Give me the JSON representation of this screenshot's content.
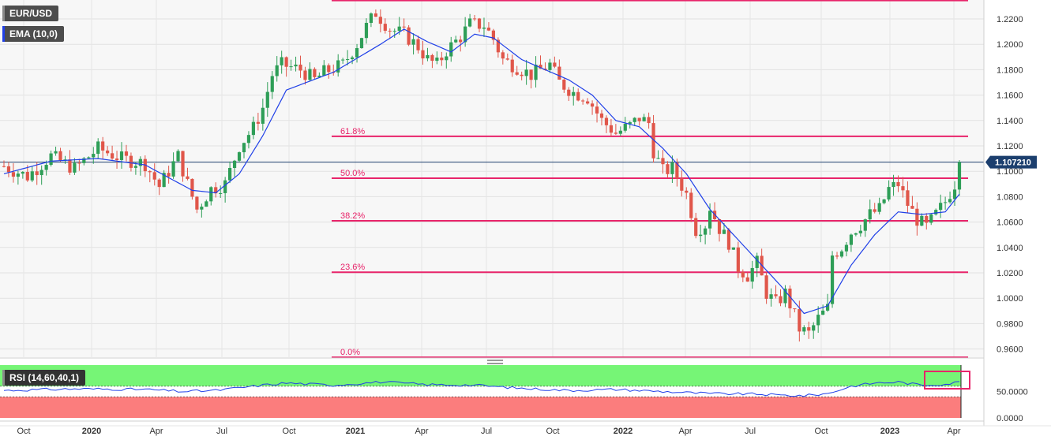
{
  "instrument": "EUR/USD",
  "indicator_label": "EMA (10,0)",
  "rsi_label": "RSI (14,60,40,1)",
  "colors": {
    "up": "#2e9e57",
    "down": "#e0564a",
    "ema": "#2040e8",
    "fib": "#e8246a",
    "rsi_line": "#2040e8",
    "rsi_upper": "#76f576",
    "rsi_lower": "#fb7d7d",
    "annotation": "#e8246a",
    "current_label_bg": "#1c3f6e",
    "legend_bg": "#4d4d4d"
  },
  "current_price": "1.107210",
  "chart_data": {
    "type": "candlestick",
    "timeframe": "weekly",
    "ylim": [
      0.955,
      1.235
    ],
    "y_ticks": [
      "1.2200",
      "1.2000",
      "1.1800",
      "1.1600",
      "1.1400",
      "1.1200",
      "1.1000",
      "1.0800",
      "1.0600",
      "1.0400",
      "1.0200",
      "1.0000",
      "0.9800",
      "0.9600"
    ],
    "x_ticks": [
      "Oct",
      "2020",
      "Apr",
      "Jul",
      "Oct",
      "2021",
      "Apr",
      "Jul",
      "Oct",
      "2022",
      "Apr",
      "Jul",
      "Oct",
      "2023",
      "Apr"
    ],
    "fib_levels": [
      {
        "label": "0.0%",
        "value": 0.9535
      },
      {
        "label": "23.6%",
        "value": 1.0205
      },
      {
        "label": "38.2%",
        "value": 1.061
      },
      {
        "label": "50.0%",
        "value": 1.0945
      },
      {
        "label": "61.8%",
        "value": 1.1275
      },
      {
        "label": "",
        "value": 1.2345
      }
    ],
    "current_price_line": 1.1072,
    "anchors": [
      [
        0,
        1.104
      ],
      [
        5,
        1.096
      ],
      [
        10,
        1.112
      ],
      [
        15,
        1.102
      ],
      [
        20,
        1.118
      ],
      [
        25,
        1.11
      ],
      [
        30,
        1.106
      ],
      [
        33,
        1.088
      ],
      [
        37,
        1.112
      ],
      [
        39,
        1.09
      ],
      [
        41,
        1.07
      ],
      [
        44,
        1.086
      ],
      [
        47,
        1.09
      ],
      [
        50,
        1.12
      ],
      [
        53,
        1.134
      ],
      [
        55,
        1.15
      ],
      [
        57,
        1.176
      ],
      [
        59,
        1.184
      ],
      [
        63,
        1.18
      ],
      [
        66,
        1.172
      ],
      [
        68,
        1.178
      ],
      [
        72,
        1.184
      ],
      [
        75,
        1.2
      ],
      [
        77,
        1.214
      ],
      [
        79,
        1.225
      ],
      [
        82,
        1.212
      ],
      [
        85,
        1.208
      ],
      [
        88,
        1.198
      ],
      [
        90,
        1.188
      ],
      [
        92,
        1.184
      ],
      [
        94,
        1.195
      ],
      [
        97,
        1.206
      ],
      [
        99,
        1.216
      ],
      [
        102,
        1.215
      ],
      [
        104,
        1.204
      ],
      [
        106,
        1.188
      ],
      [
        109,
        1.182
      ],
      [
        112,
        1.176
      ],
      [
        114,
        1.18
      ],
      [
        116,
        1.184
      ],
      [
        118,
        1.17
      ],
      [
        121,
        1.162
      ],
      [
        124,
        1.158
      ],
      [
        127,
        1.14
      ],
      [
        130,
        1.13
      ],
      [
        133,
        1.136
      ],
      [
        135,
        1.142
      ],
      [
        137,
        1.138
      ],
      [
        138,
        1.116
      ],
      [
        140,
        1.1
      ],
      [
        142,
        1.102
      ],
      [
        145,
        1.082
      ],
      [
        147,
        1.054
      ],
      [
        149,
        1.058
      ],
      [
        150,
        1.072
      ],
      [
        152,
        1.055
      ],
      [
        154,
        1.044
      ],
      [
        156,
        1.024
      ],
      [
        158,
        1.018
      ],
      [
        160,
        1.028
      ],
      [
        162,
        1.004
      ],
      [
        164,
        0.996
      ],
      [
        166,
        1.004
      ],
      [
        168,
        0.986
      ],
      [
        169,
        0.976
      ],
      [
        171,
        0.972
      ],
      [
        173,
        0.984
      ],
      [
        175,
        0.992
      ],
      [
        176,
        1.034
      ],
      [
        178,
        1.04
      ],
      [
        180,
        1.052
      ],
      [
        182,
        1.058
      ],
      [
        184,
        1.066
      ],
      [
        186,
        1.07
      ],
      [
        188,
        1.086
      ],
      [
        190,
        1.09
      ],
      [
        192,
        1.074
      ],
      [
        194,
        1.062
      ],
      [
        196,
        1.056
      ],
      [
        198,
        1.066
      ],
      [
        200,
        1.076
      ],
      [
        202,
        1.09
      ],
      [
        203,
        1.1072
      ]
    ],
    "ema_anchors": [
      [
        0,
        1.098
      ],
      [
        10,
        1.108
      ],
      [
        20,
        1.11
      ],
      [
        30,
        1.105
      ],
      [
        40,
        1.085
      ],
      [
        45,
        1.083
      ],
      [
        50,
        1.098
      ],
      [
        55,
        1.128
      ],
      [
        60,
        1.164
      ],
      [
        70,
        1.178
      ],
      [
        80,
        1.2
      ],
      [
        85,
        1.212
      ],
      [
        90,
        1.202
      ],
      [
        95,
        1.194
      ],
      [
        100,
        1.208
      ],
      [
        104,
        1.205
      ],
      [
        110,
        1.188
      ],
      [
        120,
        1.172
      ],
      [
        125,
        1.16
      ],
      [
        130,
        1.14
      ],
      [
        135,
        1.135
      ],
      [
        140,
        1.118
      ],
      [
        145,
        1.098
      ],
      [
        150,
        1.07
      ],
      [
        155,
        1.05
      ],
      [
        160,
        1.03
      ],
      [
        165,
        1.01
      ],
      [
        170,
        0.988
      ],
      [
        175,
        0.994
      ],
      [
        180,
        1.026
      ],
      [
        185,
        1.05
      ],
      [
        190,
        1.068
      ],
      [
        195,
        1.066
      ],
      [
        200,
        1.068
      ],
      [
        203,
        1.082
      ]
    ],
    "candle_count": 204,
    "rsi": {
      "upper": 60,
      "lower": 40,
      "ticks": [
        "50.0000",
        "0.0000"
      ],
      "anchors": [
        [
          0,
          52
        ],
        [
          15,
          55
        ],
        [
          30,
          54
        ],
        [
          38,
          50
        ],
        [
          45,
          52
        ],
        [
          55,
          62
        ],
        [
          60,
          66
        ],
        [
          70,
          62
        ],
        [
          80,
          68
        ],
        [
          90,
          63
        ],
        [
          100,
          62
        ],
        [
          110,
          56
        ],
        [
          120,
          52
        ],
        [
          130,
          54
        ],
        [
          140,
          50
        ],
        [
          145,
          48
        ],
        [
          150,
          46
        ],
        [
          160,
          45
        ],
        [
          165,
          43
        ],
        [
          170,
          42
        ],
        [
          175,
          46
        ],
        [
          180,
          60
        ],
        [
          185,
          66
        ],
        [
          190,
          68
        ],
        [
          195,
          62
        ],
        [
          200,
          64
        ],
        [
          203,
          68
        ]
      ]
    }
  }
}
